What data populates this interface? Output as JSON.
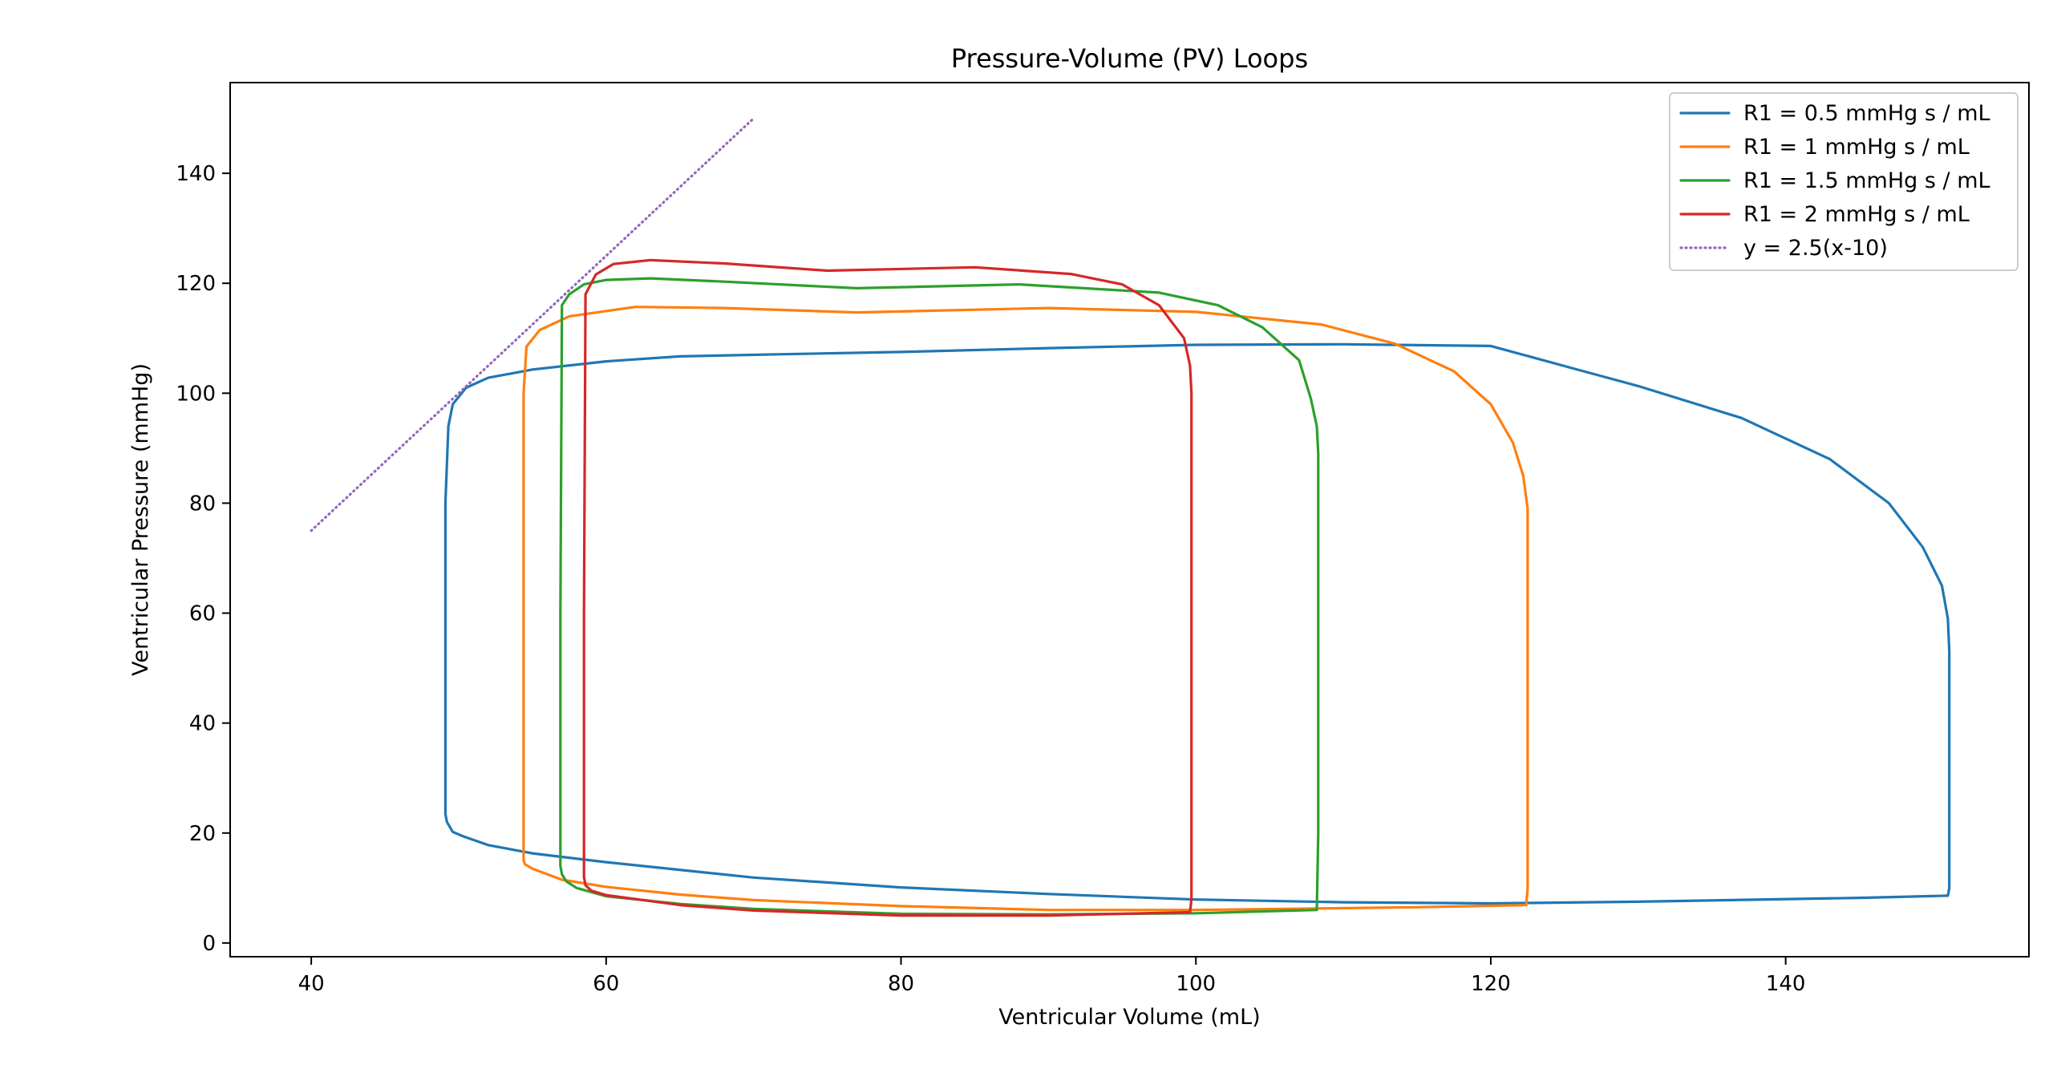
{
  "chart_data": {
    "type": "line",
    "title": "Pressure-Volume (PV) Loops",
    "xlabel": "Ventricular Volume (mL)",
    "ylabel": "Ventricular Pressure (mmHg)",
    "xlim": [
      34.5,
      156.5
    ],
    "ylim": [
      -2.5,
      156.5
    ],
    "xticks": [
      40,
      60,
      80,
      100,
      120,
      140
    ],
    "yticks": [
      0,
      20,
      40,
      60,
      80,
      100,
      120,
      140
    ],
    "grid": false,
    "legend_position": "top-right",
    "series": [
      {
        "name": "R1 = 0.5 mmHg s / mL",
        "color": "#1f77b4",
        "style": "solid",
        "x": [
          49.1,
          49.1,
          49.1,
          49.1,
          49.3,
          49.6,
          50.5,
          52,
          55,
          60,
          65,
          72,
          80,
          90,
          100,
          110,
          120,
          126,
          130,
          137,
          143,
          147,
          149.3,
          150.6,
          151.0,
          151.1,
          151.1,
          151.1,
          151.1,
          151.1,
          151.0,
          145,
          130,
          120,
          110,
          100,
          90,
          80,
          70,
          60,
          55,
          52,
          50.3,
          49.6,
          49.2,
          49.1
        ],
        "y": [
          23.5,
          40,
          60,
          80,
          94,
          98,
          101,
          102.8,
          104.3,
          105.8,
          106.7,
          107.1,
          107.5,
          108.2,
          108.8,
          108.9,
          108.6,
          104.2,
          101.3,
          95.5,
          88,
          80,
          72,
          65,
          59,
          53,
          45,
          30,
          15,
          10,
          8.6,
          8.2,
          7.5,
          7.2,
          7.4,
          7.9,
          8.9,
          10.1,
          11.9,
          14.7,
          16.3,
          17.8,
          19.4,
          20.2,
          22,
          23.5
        ]
      },
      {
        "name": "R1 = 1 mmHg s / mL",
        "color": "#ff7f0e",
        "style": "solid",
        "x": [
          54.4,
          54.4,
          54.4,
          54.6,
          55.5,
          57.5,
          62,
          68,
          77,
          90,
          100,
          108.5,
          113.5,
          117.5,
          120,
          121.5,
          122.2,
          122.5,
          122.5,
          122.5,
          122.4,
          115,
          100,
          90,
          80,
          70,
          65,
          60,
          57,
          55,
          54.5,
          54.4
        ],
        "y": [
          15,
          50,
          100,
          108.5,
          111.5,
          114,
          115.7,
          115.5,
          114.7,
          115.5,
          114.8,
          112.5,
          109,
          104,
          98,
          91,
          85,
          79,
          30,
          10,
          6.9,
          6.5,
          6.0,
          6.0,
          6.7,
          7.8,
          8.8,
          10.2,
          11.5,
          13.5,
          14.3,
          15
        ]
      },
      {
        "name": "R1 = 1.5 mmHg s / mL",
        "color": "#2ca02c",
        "style": "solid",
        "x": [
          56.9,
          56.9,
          57.0,
          57.5,
          58.5,
          60,
          63,
          68,
          77,
          88,
          97.5,
          101.5,
          104.5,
          107,
          107.8,
          108.2,
          108.3,
          108.3,
          108.2,
          100,
          90,
          80,
          70,
          65,
          60,
          58,
          57.3,
          57.0,
          56.9
        ],
        "y": [
          14,
          60,
          116,
          118,
          119.8,
          120.6,
          120.9,
          120.3,
          119.1,
          119.8,
          118.3,
          116,
          112,
          106,
          99,
          94,
          89,
          20,
          6.0,
          5.4,
          5.2,
          5.3,
          6.2,
          7.1,
          8.5,
          10.0,
          11.2,
          12.5,
          14
        ]
      },
      {
        "name": "R1 = 2 mmHg s / mL",
        "color": "#d62728",
        "style": "solid",
        "x": [
          58.5,
          58.5,
          58.6,
          59.3,
          60.5,
          63,
          68,
          75,
          85,
          91.5,
          95,
          97.5,
          99.2,
          99.6,
          99.7,
          99.7,
          99.7,
          99.6,
          90,
          80,
          70,
          65,
          60,
          59,
          58.6,
          58.5
        ],
        "y": [
          12,
          60,
          118,
          121.6,
          123.5,
          124.2,
          123.6,
          122.3,
          122.9,
          121.7,
          119.8,
          116,
          110,
          105,
          100,
          50,
          8,
          5.6,
          5.0,
          5.0,
          5.9,
          6.9,
          8.7,
          9.5,
          10.5,
          12
        ]
      },
      {
        "name": "y = 2.5(x-10)",
        "color": "#9467bd",
        "style": "dotted",
        "x": [
          40,
          70
        ],
        "y": [
          75,
          150
        ]
      }
    ]
  }
}
